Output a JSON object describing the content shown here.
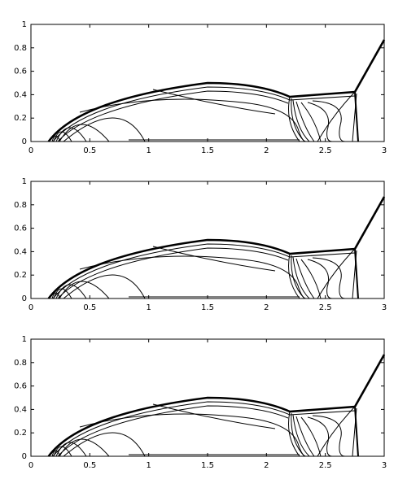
{
  "chart_data": [
    {
      "type": "contour",
      "xlim": [
        0,
        3
      ],
      "xticks": [
        0,
        0.5,
        1,
        1.5,
        2,
        2.5,
        3
      ],
      "ylim": [
        0,
        1
      ],
      "yticks": [
        0,
        0.2,
        0.4,
        0.6,
        0.8,
        1
      ]
    },
    {
      "type": "contour",
      "xlim": [
        0,
        3
      ],
      "xticks": [
        0,
        0.5,
        1,
        1.5,
        2,
        2.5,
        3
      ],
      "ylim": [
        0,
        1
      ],
      "yticks": [
        0,
        0.2,
        0.4,
        0.6,
        0.8,
        1
      ]
    },
    {
      "type": "contour",
      "xlim": [
        0,
        3
      ],
      "xticks": [
        0,
        0.5,
        1,
        1.5,
        2,
        2.5,
        3
      ],
      "ylim": [
        0,
        1
      ],
      "yticks": [
        0,
        0.2,
        0.4,
        0.6,
        0.8,
        1
      ]
    }
  ]
}
